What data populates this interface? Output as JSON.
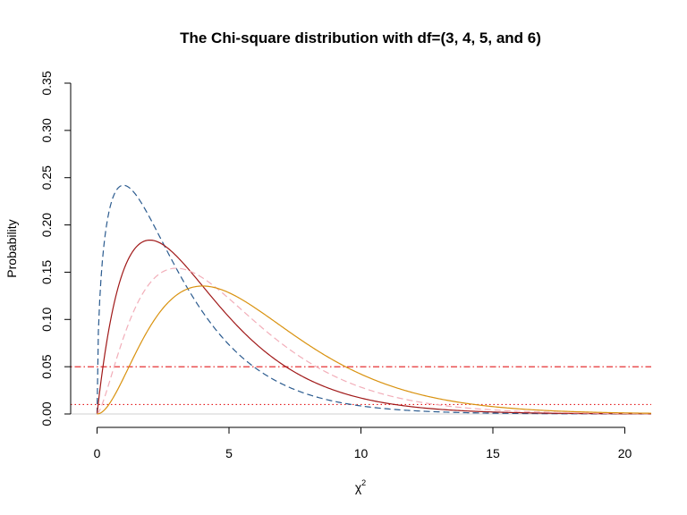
{
  "chart_data": {
    "type": "line",
    "title": "The Chi-square distribution with df=(3, 4, 5, and 6)",
    "xlabel": "χ",
    "xlabel_superscript": "2",
    "ylabel": "Probability",
    "xlim": [
      -1,
      21
    ],
    "ylim": [
      0,
      0.35
    ],
    "xticks": [
      0,
      5,
      10,
      15,
      20
    ],
    "xtick_labels": [
      "0",
      "5",
      "10",
      "15",
      "20"
    ],
    "yticks": [
      0.0,
      0.05,
      0.1,
      0.15,
      0.2,
      0.25,
      0.3,
      0.35
    ],
    "ytick_labels": [
      "0.00",
      "0.05",
      "0.10",
      "0.15",
      "0.20",
      "0.25",
      "0.30",
      "0.35"
    ],
    "grid": false,
    "series": [
      {
        "df": 3,
        "color": "#2b5b8f",
        "dash": "dashed",
        "x_range": [
          0,
          21
        ],
        "peak": {
          "x": 1,
          "y": 0.242
        }
      },
      {
        "df": 4,
        "color": "#a01818",
        "dash": "solid",
        "x_range": [
          0,
          21
        ],
        "peak": {
          "x": 2,
          "y": 0.184
        }
      },
      {
        "df": 5,
        "color": "#f2aeb9",
        "dash": "dashed",
        "x_range": [
          0,
          21
        ],
        "peak": {
          "x": 3,
          "y": 0.154
        }
      },
      {
        "df": 6,
        "color": "#d9920f",
        "dash": "solid",
        "x_range": [
          0,
          21
        ],
        "peak": {
          "x": 4,
          "y": 0.135
        }
      }
    ],
    "hlines": [
      {
        "y": 0.05,
        "color": "#e41a1c",
        "dash": "dotdash"
      },
      {
        "y": 0.01,
        "color": "#e41a1c",
        "dash": "dotted"
      }
    ],
    "baseline": {
      "y": 0,
      "color": "#d0d0d0"
    }
  }
}
